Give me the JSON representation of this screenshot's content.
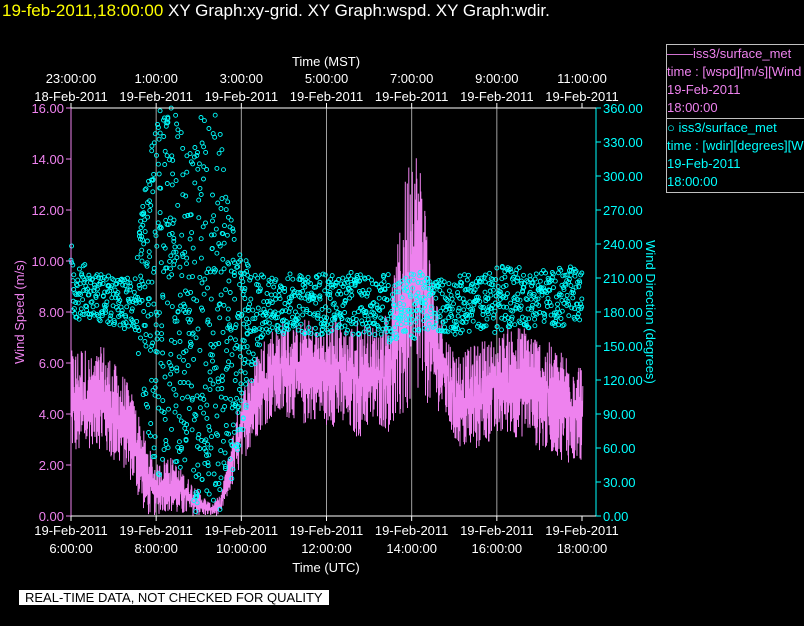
{
  "header": {
    "timestamp": "19-feb-2011,18:00:00",
    "graphs": " XY Graph:xy-grid.  XY Graph:wspd.  XY Graph:wdir."
  },
  "legend": [
    {
      "line1": "——iss3/surface_met",
      "line2": "time : [wspd][m/s][Wind",
      "line3": "19-Feb-2011",
      "line4": "18:00:00",
      "color": "#ee82ee"
    },
    {
      "line1": " ○ iss3/surface_met",
      "line2": "time : [wdir][degrees][W",
      "line3": "19-Feb-2011",
      "line4": "18:00:00",
      "color": "#00ffff"
    }
  ],
  "quality_note": "REAL-TIME DATA, NOT CHECKED FOR QUALITY",
  "chart_data": {
    "type": "line",
    "top_axis": {
      "label": "Time (MST)",
      "ticks": [
        {
          "t": "23:00:00",
          "d": "18-Feb-2011"
        },
        {
          "t": "1:00:00",
          "d": "19-Feb-2011"
        },
        {
          "t": "3:00:00",
          "d": "19-Feb-2011"
        },
        {
          "t": "5:00:00",
          "d": "19-Feb-2011"
        },
        {
          "t": "7:00:00",
          "d": "19-Feb-2011"
        },
        {
          "t": "9:00:00",
          "d": "19-Feb-2011"
        },
        {
          "t": "11:00:00",
          "d": "19-Feb-2011"
        }
      ]
    },
    "bottom_axis": {
      "label": "Time (UTC)",
      "ticks": [
        {
          "t": "6:00:00",
          "d": "19-Feb-2011"
        },
        {
          "t": "8:00:00",
          "d": "19-Feb-2011"
        },
        {
          "t": "10:00:00",
          "d": "19-Feb-2011"
        },
        {
          "t": "12:00:00",
          "d": "19-Feb-2011"
        },
        {
          "t": "14:00:00",
          "d": "19-Feb-2011"
        },
        {
          "t": "16:00:00",
          "d": "19-Feb-2011"
        },
        {
          "t": "18:00:00",
          "d": "19-Feb-2011"
        }
      ],
      "xlim_hours_utc": [
        6,
        18
      ]
    },
    "left_axis": {
      "label": "Wind Speed (m/s)",
      "ylim": [
        0,
        16
      ],
      "ticks": [
        "0.00",
        "2.00",
        "4.00",
        "6.00",
        "8.00",
        "10.00",
        "12.00",
        "14.00",
        "16.00"
      ]
    },
    "right_axis": {
      "label": "Wind Direction (degrees)",
      "ylim": [
        0,
        360
      ],
      "ticks": [
        "0.00",
        "30.00",
        "60.00",
        "90.00",
        "120.00",
        "150.00",
        "180.00",
        "210.00",
        "240.00",
        "270.00",
        "300.00",
        "330.00",
        "360.00"
      ]
    },
    "grid": "vertical",
    "series": [
      {
        "name": "iss3/surface_met time : [wspd][m/s][Wind",
        "axis": "left",
        "color": "#ee82ee",
        "x_utc_hours": [
          6.0,
          6.25,
          6.5,
          6.75,
          7.0,
          7.25,
          7.5,
          7.75,
          8.0,
          8.25,
          8.5,
          8.75,
          9.0,
          9.25,
          9.5,
          9.75,
          10.0,
          10.25,
          10.5,
          10.75,
          11.0,
          11.25,
          11.5,
          11.75,
          12.0,
          12.25,
          12.5,
          12.75,
          13.0,
          13.25,
          13.5,
          13.75,
          14.0,
          14.25,
          14.5,
          14.75,
          15.0,
          15.25,
          15.5,
          15.75,
          16.0,
          16.25,
          16.5,
          16.75,
          17.0,
          17.25,
          17.5,
          17.75,
          18.0
        ],
        "y_low": [
          2.5,
          2.2,
          2.8,
          2.5,
          2.0,
          1.8,
          1.0,
          0.0,
          0.0,
          0.2,
          0.0,
          0.0,
          0.0,
          0.0,
          0.0,
          1.0,
          2.0,
          2.8,
          3.5,
          3.8,
          3.8,
          3.8,
          3.5,
          3.8,
          3.5,
          3.5,
          3.2,
          3.0,
          3.5,
          3.5,
          3.2,
          3.5,
          4.0,
          4.5,
          4.2,
          4.0,
          2.8,
          2.5,
          2.5,
          2.8,
          3.0,
          3.2,
          3.0,
          3.2,
          2.5,
          2.5,
          2.2,
          2.0,
          2.0
        ],
        "y_high": [
          6.5,
          6.8,
          6.2,
          6.8,
          6.0,
          5.5,
          4.5,
          3.0,
          2.0,
          2.5,
          2.0,
          1.5,
          1.0,
          0.5,
          0.8,
          3.0,
          5.0,
          6.0,
          7.0,
          7.5,
          7.8,
          7.5,
          7.8,
          7.5,
          7.5,
          8.0,
          7.5,
          7.8,
          7.5,
          7.5,
          8.5,
          12.0,
          15.5,
          13.5,
          9.0,
          7.5,
          6.5,
          6.5,
          6.8,
          7.0,
          7.0,
          7.5,
          7.5,
          7.5,
          7.0,
          6.8,
          6.5,
          6.5,
          6.0
        ]
      },
      {
        "name": "iss3/surface_met time : [wdir][degrees][W",
        "axis": "right",
        "color": "#00ffff",
        "x_utc_hours": [
          6.0,
          6.25,
          6.5,
          6.75,
          7.0,
          7.25,
          7.5,
          7.75,
          8.0,
          8.25,
          8.5,
          8.75,
          9.0,
          9.25,
          9.5,
          9.75,
          10.0,
          10.25,
          10.5,
          10.75,
          11.0,
          11.25,
          11.5,
          11.75,
          12.0,
          12.25,
          12.5,
          12.75,
          13.0,
          13.25,
          13.5,
          13.75,
          14.0,
          14.25,
          14.5,
          14.75,
          15.0,
          15.25,
          15.5,
          15.75,
          16.0,
          16.25,
          16.5,
          16.75,
          17.0,
          17.25,
          17.5,
          17.75,
          18.0
        ],
        "y_low": [
          170,
          175,
          175,
          170,
          165,
          165,
          160,
          80,
          20,
          60,
          40,
          10,
          0,
          0,
          5,
          30,
          60,
          120,
          160,
          160,
          160,
          165,
          160,
          160,
          160,
          165,
          160,
          160,
          160,
          160,
          150,
          160,
          155,
          160,
          165,
          160,
          160,
          160,
          165,
          165,
          160,
          165,
          170,
          165,
          170,
          170,
          165,
          170,
          170
        ],
        "y_high": [
          240,
          225,
          215,
          215,
          210,
          210,
          220,
          300,
          360,
          360,
          360,
          320,
          360,
          360,
          350,
          260,
          230,
          220,
          215,
          210,
          215,
          215,
          210,
          215,
          215,
          210,
          215,
          215,
          210,
          215,
          215,
          210,
          215,
          215,
          210,
          210,
          210,
          215,
          210,
          215,
          220,
          225,
          220,
          215,
          220,
          215,
          220,
          220,
          215
        ]
      }
    ]
  }
}
